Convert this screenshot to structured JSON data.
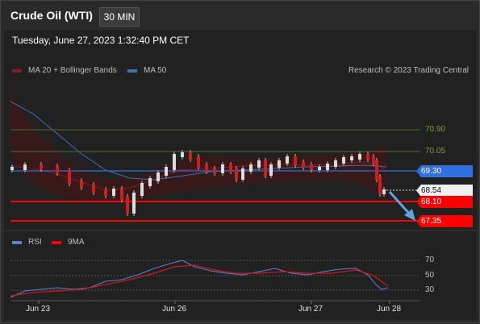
{
  "header": {
    "title": "Crude Oil (WTI)",
    "interval": "30 MIN",
    "datetime": "Tuesday, June 27, 2023 1:32:40 PM CET"
  },
  "legend": {
    "ma20_label": "MA 20 + Bollinger Bands",
    "ma50_label": "MA 50",
    "copyright": "Research © 2023 Trading Central",
    "rsi_label": "RSI",
    "ma9_label": "9MA"
  },
  "colors": {
    "ma20": "#8b1a1a",
    "ma50": "#3f6fb0",
    "resistance": "#4f6b2a",
    "support": "#ff0000",
    "pivot": "#2f6fe0",
    "rsi": "#5d7fd4",
    "arrow": "#5fa3e0"
  },
  "levels": {
    "r2": "70.90",
    "r1": "70.05",
    "pivot": "69.30",
    "last": "68.54",
    "s1": "68.10",
    "s2": "67.35"
  },
  "rsi_levels": [
    "70",
    "50",
    "30"
  ],
  "x_labels": [
    "Jun 23",
    "Jun 26",
    "Jun 27",
    "Jun 28"
  ],
  "icons": [
    "trend-arrow-down-icon"
  ]
}
